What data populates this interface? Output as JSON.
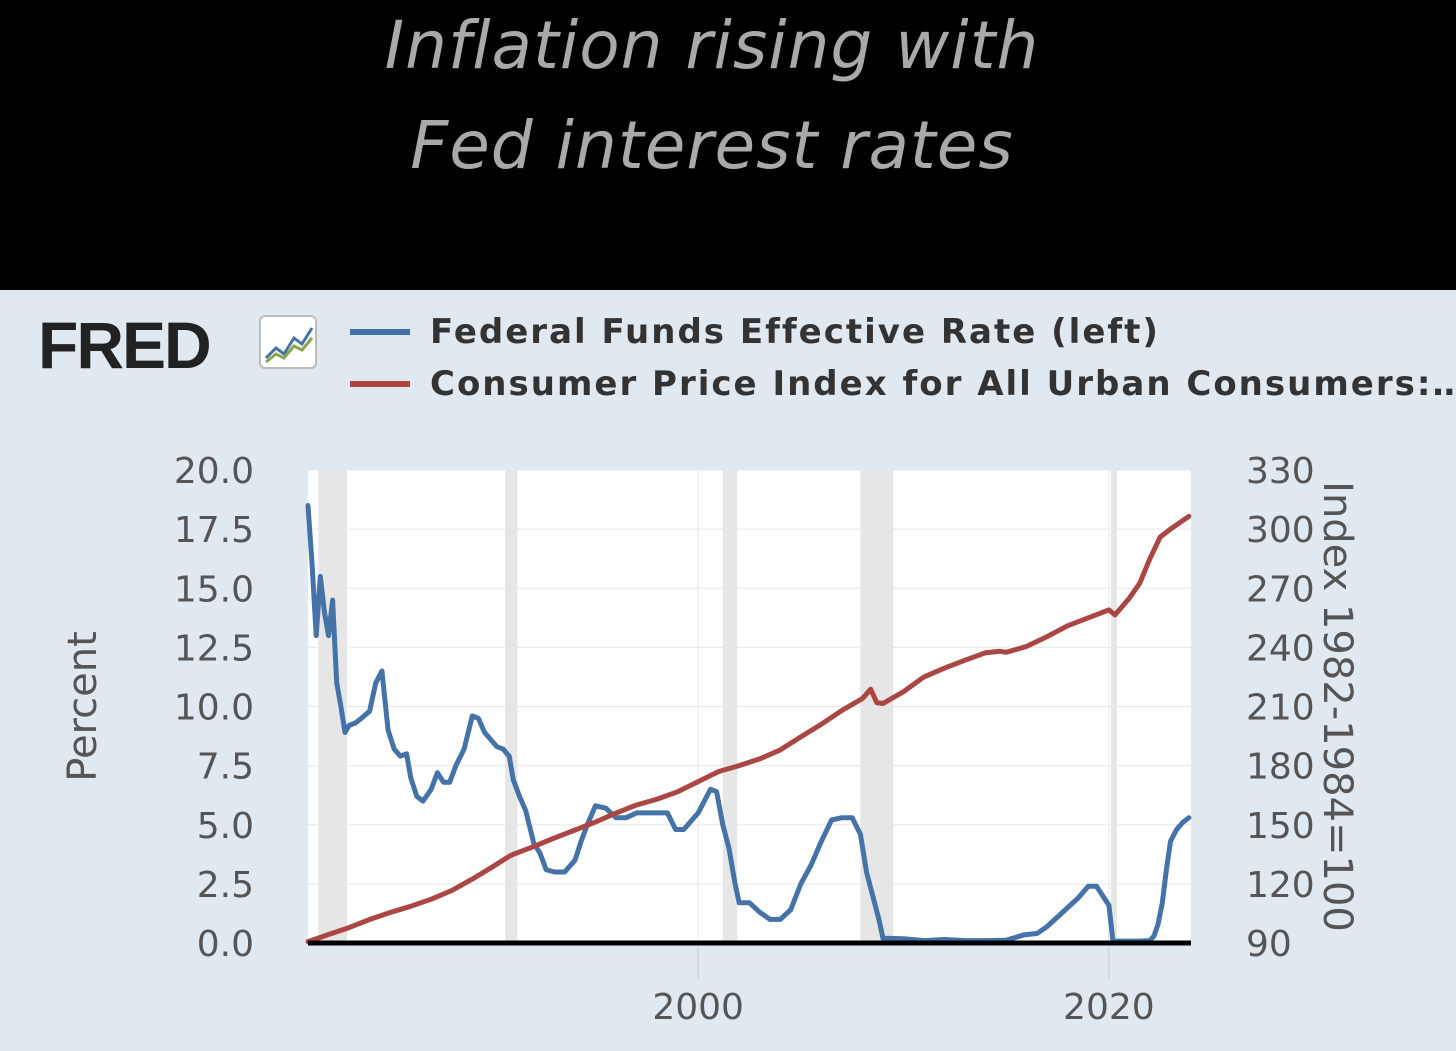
{
  "page_title": {
    "line1": "Inflation rising with",
    "line2": "Fed interest rates"
  },
  "fred": {
    "logo_text": "FRED",
    "logo_icon": "line-chart-icon",
    "colors": {
      "panel_bg": "#e1e9f0",
      "plot_bg": "#ffffff",
      "recession": "#e6e6e6"
    }
  },
  "chart_data": {
    "type": "line",
    "dual_axis": true,
    "series": [
      {
        "name": "Federal Funds Effective Rate (left)",
        "axis": "left",
        "color": "#4572a7",
        "x": [
          1981.0,
          1981.2,
          1981.4,
          1981.6,
          1981.8,
          1982.0,
          1982.2,
          1982.4,
          1982.6,
          1982.8,
          1983.0,
          1983.3,
          1983.6,
          1984.0,
          1984.3,
          1984.6,
          1984.9,
          1985.2,
          1985.5,
          1985.8,
          1986.0,
          1986.3,
          1986.6,
          1987.0,
          1987.3,
          1987.6,
          1987.9,
          1988.2,
          1988.6,
          1989.0,
          1989.3,
          1989.6,
          1989.9,
          1990.2,
          1990.5,
          1990.8,
          1991.0,
          1991.3,
          1991.6,
          1992.0,
          1992.3,
          1992.6,
          1993.0,
          1993.5,
          1994.0,
          1994.3,
          1994.6,
          1995.0,
          1995.5,
          1996.0,
          1996.5,
          1997.0,
          1997.5,
          1998.0,
          1998.5,
          1998.9,
          1999.3,
          1999.7,
          2000.0,
          2000.3,
          2000.6,
          2000.9,
          2001.2,
          2001.5,
          2001.8,
          2002.0,
          2002.5,
          2003.0,
          2003.5,
          2004.0,
          2004.5,
          2005.0,
          2005.5,
          2006.0,
          2006.5,
          2007.0,
          2007.5,
          2007.9,
          2008.2,
          2008.5,
          2008.8,
          2009.0,
          2010.0,
          2011.0,
          2012.0,
          2013.0,
          2014.0,
          2015.0,
          2015.9,
          2016.5,
          2017.0,
          2017.5,
          2018.0,
          2018.5,
          2019.0,
          2019.4,
          2019.7,
          2020.0,
          2020.2,
          2020.5,
          2021.0,
          2021.5,
          2022.0,
          2022.2,
          2022.4,
          2022.6,
          2022.8,
          2023.0,
          2023.3,
          2023.6,
          2023.9
        ],
        "values": [
          18.5,
          16.0,
          13.0,
          15.5,
          14.0,
          13.0,
          14.5,
          11.0,
          10.0,
          8.9,
          9.2,
          9.3,
          9.5,
          9.8,
          11.0,
          11.5,
          9.0,
          8.2,
          7.9,
          8.0,
          7.0,
          6.2,
          6.0,
          6.5,
          7.2,
          6.8,
          6.8,
          7.5,
          8.2,
          9.6,
          9.5,
          8.9,
          8.6,
          8.3,
          8.2,
          7.9,
          6.9,
          6.2,
          5.6,
          4.2,
          3.8,
          3.1,
          3.0,
          3.0,
          3.5,
          4.3,
          5.0,
          5.8,
          5.7,
          5.3,
          5.3,
          5.5,
          5.5,
          5.5,
          5.5,
          4.8,
          4.8,
          5.2,
          5.5,
          6.0,
          6.5,
          6.4,
          5.0,
          4.0,
          2.5,
          1.7,
          1.7,
          1.3,
          1.0,
          1.0,
          1.4,
          2.5,
          3.3,
          4.3,
          5.2,
          5.3,
          5.3,
          4.6,
          3.0,
          2.0,
          1.0,
          0.2,
          0.18,
          0.1,
          0.15,
          0.1,
          0.1,
          0.12,
          0.35,
          0.4,
          0.7,
          1.1,
          1.5,
          1.9,
          2.4,
          2.4,
          2.0,
          1.6,
          0.08,
          0.08,
          0.08,
          0.08,
          0.1,
          0.3,
          0.8,
          1.7,
          3.1,
          4.3,
          4.8,
          5.1,
          5.3
        ]
      },
      {
        "name": "Consumer Price Index for All Urban Consumers:…",
        "axis": "right",
        "color": "#aa4643",
        "x": [
          1981.0,
          1981.5,
          1982.0,
          1983.0,
          1984.0,
          1985.0,
          1986.0,
          1987.0,
          1988.0,
          1989.0,
          1990.0,
          1990.8,
          1991.0,
          1992.0,
          1993.0,
          1994.0,
          1995.0,
          1996.0,
          1997.0,
          1998.0,
          1999.0,
          2000.0,
          2001.0,
          2002.0,
          2003.0,
          2004.0,
          2005.0,
          2006.0,
          2007.0,
          2008.0,
          2008.4,
          2008.7,
          2009.0,
          2009.5,
          2010.0,
          2011.0,
          2012.0,
          2013.0,
          2014.0,
          2014.7,
          2015.0,
          2016.0,
          2017.0,
          2018.0,
          2019.0,
          2020.0,
          2020.3,
          2021.0,
          2021.5,
          2022.0,
          2022.5,
          2023.0,
          2023.9
        ],
        "values": [
          90.7,
          92.5,
          94.3,
          97.8,
          101.9,
          105.5,
          108.6,
          112.2,
          116.6,
          122.4,
          128.7,
          134.0,
          135.0,
          139.0,
          143.3,
          147.3,
          151.4,
          155.9,
          160.0,
          163.0,
          166.7,
          171.9,
          177.0,
          180.0,
          183.4,
          188.0,
          194.6,
          201.0,
          208.0,
          214.0,
          218.8,
          212.0,
          211.5,
          214.5,
          217.5,
          225.0,
          229.5,
          233.5,
          237.3,
          238.0,
          237.5,
          240.5,
          245.5,
          251.0,
          255.0,
          259.0,
          256.5,
          265.0,
          272.5,
          285.0,
          296.0,
          300.0,
          306.5
        ]
      }
    ],
    "left_axis": {
      "label": "Percent",
      "range": [
        0,
        20
      ],
      "ticks": [
        "20.0",
        "17.5",
        "15.0",
        "12.5",
        "10.0",
        "7.5",
        "5.0",
        "2.5",
        "0.0"
      ]
    },
    "right_axis": {
      "label": "Index 1982-1984=100",
      "range": [
        90,
        330
      ],
      "ticks": [
        "330",
        "300",
        "270",
        "240",
        "210",
        "180",
        "150",
        "120",
        "90"
      ]
    },
    "x_axis": {
      "range": [
        1981,
        2024
      ],
      "ticks": [
        {
          "value": 2000,
          "label": "2000"
        },
        {
          "value": 2020,
          "label": "2020"
        }
      ]
    },
    "recessions": [
      [
        1981.5,
        1982.9
      ],
      [
        1990.6,
        1991.2
      ],
      [
        2001.2,
        2001.9
      ],
      [
        2007.9,
        2009.5
      ],
      [
        2020.1,
        2020.3
      ]
    ],
    "grid": true,
    "legend_position": "top"
  }
}
